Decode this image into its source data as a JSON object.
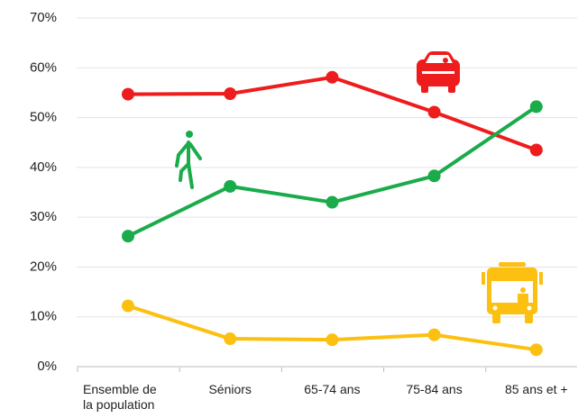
{
  "chart_data": {
    "type": "line",
    "categories": [
      "Ensemble de la population",
      "Séniors",
      "65-74 ans",
      "75-84 ans",
      "85 ans et +"
    ],
    "series": [
      {
        "color": "#ee1c1c",
        "values": [
          54.7,
          54.8,
          58.1,
          51.1,
          43.5
        ]
      },
      {
        "color": "#1aab4b",
        "values": [
          26.2,
          36.2,
          33.0,
          38.3,
          52.2
        ]
      },
      {
        "color": "#fcc010",
        "values": [
          12.2,
          5.6,
          5.4,
          6.4,
          3.4
        ]
      }
    ],
    "ylim": [
      0,
      70
    ],
    "yticks": [
      {
        "value": 0,
        "label": "0%"
      },
      {
        "value": 10,
        "label": "10%"
      },
      {
        "value": 20,
        "label": "20%"
      },
      {
        "value": 30,
        "label": "30%"
      },
      {
        "value": 40,
        "label": "40%"
      },
      {
        "value": 50,
        "label": "50%"
      },
      {
        "value": 60,
        "label": "60%"
      },
      {
        "value": 70,
        "label": "70%"
      }
    ],
    "grid": true
  }
}
